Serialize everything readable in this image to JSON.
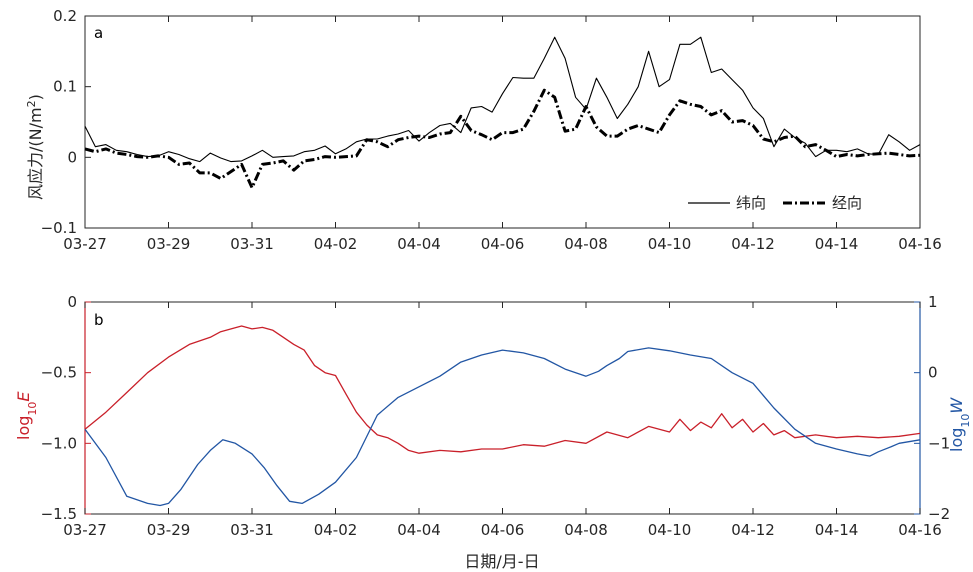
{
  "chart_data": [
    {
      "type": "line",
      "panel_label": "a",
      "ylabel": "风应力/(N/m²)",
      "ylabel_main": "风应力/(N/m",
      "ylabel_sup": "2",
      "ylabel_tail": ")",
      "x_ticks": [
        "03-27",
        "03-29",
        "03-31",
        "04-02",
        "04-04",
        "04-06",
        "04-08",
        "04-10",
        "04-12",
        "04-14",
        "04-16"
      ],
      "x_unit": "day index from 03-27",
      "xlim": [
        0,
        20
      ],
      "ylim": [
        -0.1,
        0.2
      ],
      "y_ticks": [
        "0.2",
        "0.1",
        "0",
        "−0.1"
      ],
      "y_tick_values": [
        0.2,
        0.1,
        0,
        -0.1
      ],
      "legend_position": "bottom-right",
      "series": [
        {
          "name": "纬向",
          "color": "#000000",
          "style": "solid",
          "x": [
            0,
            0.25,
            0.5,
            0.75,
            1,
            1.25,
            1.5,
            1.75,
            2,
            2.25,
            2.5,
            2.75,
            3,
            3.25,
            3.5,
            3.75,
            4,
            4.25,
            4.5,
            4.75,
            5,
            5.25,
            5.5,
            5.75,
            6,
            6.25,
            6.5,
            6.75,
            7,
            7.25,
            7.5,
            7.75,
            8,
            8.25,
            8.5,
            8.75,
            9,
            9.25,
            9.5,
            9.75,
            10,
            10.25,
            10.5,
            10.75,
            11,
            11.25,
            11.5,
            11.75,
            12,
            12.25,
            12.5,
            12.75,
            13,
            13.25,
            13.5,
            13.75,
            14,
            14.25,
            14.5,
            14.75,
            15,
            15.25,
            15.5,
            15.75,
            16,
            16.25,
            16.5,
            16.75,
            17,
            17.25,
            17.5,
            17.75,
            18,
            18.25,
            18.5,
            18.75,
            19,
            19.25,
            19.5,
            19.75,
            20
          ],
          "y": [
            0.044,
            0.015,
            0.018,
            0.01,
            0.008,
            0.004,
            0.001,
            0.002,
            0.008,
            0.004,
            -0.002,
            -0.006,
            0.006,
            -0.001,
            -0.006,
            -0.005,
            0.002,
            0.01,
            0,
            0.001,
            0.002,
            0.008,
            0.01,
            0.016,
            0.005,
            0.012,
            0.022,
            0.026,
            0.026,
            0.03,
            0.033,
            0.038,
            0.023,
            0.035,
            0.045,
            0.048,
            0.035,
            0.07,
            0.072,
            0.064,
            0.09,
            0.113,
            0.112,
            0.112,
            0.14,
            0.17,
            0.14,
            0.085,
            0.068,
            0.112,
            0.085,
            0.055,
            0.075,
            0.1,
            0.15,
            0.1,
            0.11,
            0.16,
            0.16,
            0.17,
            0.12,
            0.125,
            0.11,
            0.095,
            0.07,
            0.055,
            0.015,
            0.04,
            0.028,
            0.02,
            0.001,
            0.01,
            0.01,
            0.008,
            0.012,
            0.005,
            0.004,
            0.032,
            0.022,
            0.01,
            0.018
          ]
        },
        {
          "name": "经向",
          "color": "#000000",
          "style": "dashdot",
          "x": [
            0,
            0.25,
            0.5,
            0.75,
            1,
            1.25,
            1.5,
            1.75,
            2,
            2.25,
            2.5,
            2.75,
            3,
            3.25,
            3.5,
            3.75,
            4,
            4.25,
            4.5,
            4.75,
            5,
            5.25,
            5.5,
            5.75,
            6,
            6.25,
            6.5,
            6.75,
            7,
            7.25,
            7.5,
            7.75,
            8,
            8.25,
            8.5,
            8.75,
            9,
            9.25,
            9.5,
            9.75,
            10,
            10.25,
            10.5,
            10.75,
            11,
            11.25,
            11.5,
            11.75,
            12,
            12.25,
            12.5,
            12.75,
            13,
            13.25,
            13.5,
            13.75,
            14,
            14.25,
            14.5,
            14.75,
            15,
            15.25,
            15.5,
            15.75,
            16,
            16.25,
            16.5,
            16.75,
            17,
            17.25,
            17.5,
            17.75,
            18,
            18.25,
            18.5,
            18.75,
            19,
            19.25,
            19.5,
            19.75,
            20
          ],
          "y": [
            0.012,
            0.008,
            0.012,
            0.006,
            0.004,
            0.001,
            0,
            0.002,
            0,
            -0.01,
            -0.008,
            -0.022,
            -0.022,
            -0.03,
            -0.02,
            -0.01,
            -0.043,
            -0.01,
            -0.008,
            -0.005,
            -0.018,
            -0.005,
            -0.003,
            0.001,
            0,
            0.001,
            0.002,
            0.025,
            0.022,
            0.015,
            0.025,
            0.028,
            0.03,
            0.028,
            0.033,
            0.035,
            0.058,
            0.038,
            0.032,
            0.025,
            0.035,
            0.035,
            0.04,
            0.065,
            0.095,
            0.085,
            0.037,
            0.04,
            0.072,
            0.043,
            0.03,
            0.03,
            0.04,
            0.045,
            0.04,
            0.035,
            0.06,
            0.08,
            0.075,
            0.072,
            0.06,
            0.066,
            0.05,
            0.052,
            0.045,
            0.026,
            0.022,
            0.028,
            0.03,
            0.015,
            0.018,
            0.01,
            0.001,
            0.004,
            0.002,
            0.004,
            0.005,
            0.006,
            0.004,
            0.002,
            0.003
          ]
        }
      ]
    },
    {
      "type": "line",
      "panel_label": "b",
      "xlabel": "日期/月-日",
      "x_ticks": [
        "03-27",
        "03-29",
        "03-31",
        "04-02",
        "04-04",
        "04-06",
        "04-08",
        "04-10",
        "04-12",
        "04-14",
        "04-16"
      ],
      "xlim": [
        0,
        20
      ],
      "ylabel_left": "log10E",
      "ylabel_left_main": "log",
      "ylabel_left_sub": "10",
      "ylabel_left_var": "E",
      "ylabel_right": "log10W",
      "ylabel_right_main": "log",
      "ylabel_right_sub": "10",
      "ylabel_right_var": "W",
      "ylim_left": [
        -1.5,
        0
      ],
      "ylim_right": [
        -2,
        1
      ],
      "y_ticks_left": [
        "0",
        "−0.5",
        "−1.0",
        "−1.5"
      ],
      "y_tick_values_left": [
        0,
        -0.5,
        -1.0,
        -1.5
      ],
      "y_ticks_right": [
        "1",
        "0",
        "−1",
        "−2"
      ],
      "y_tick_values_right": [
        1,
        0,
        -1,
        -2
      ],
      "series": [
        {
          "name": "log10E",
          "axis": "left",
          "color": "#c9202a",
          "x": [
            0,
            0.5,
            1,
            1.5,
            2,
            2.5,
            3,
            3.25,
            3.5,
            3.75,
            4,
            4.25,
            4.5,
            4.75,
            5,
            5.25,
            5.5,
            5.75,
            6,
            6.25,
            6.5,
            6.75,
            7,
            7.25,
            7.5,
            7.75,
            8,
            8.5,
            9,
            9.5,
            10,
            10.5,
            11,
            11.5,
            12,
            12.5,
            13,
            13.5,
            14,
            14.25,
            14.5,
            14.75,
            15,
            15.25,
            15.5,
            15.75,
            16,
            16.25,
            16.5,
            16.75,
            17,
            17.5,
            18,
            18.5,
            19,
            19.5,
            20
          ],
          "y": [
            -0.9,
            -0.78,
            -0.64,
            -0.5,
            -0.39,
            -0.3,
            -0.25,
            -0.21,
            -0.19,
            -0.17,
            -0.19,
            -0.18,
            -0.2,
            -0.25,
            -0.3,
            -0.34,
            -0.45,
            -0.5,
            -0.52,
            -0.65,
            -0.78,
            -0.87,
            -0.94,
            -0.96,
            -1.0,
            -1.05,
            -1.07,
            -1.05,
            -1.06,
            -1.04,
            -1.04,
            -1.01,
            -1.02,
            -0.98,
            -1.0,
            -0.92,
            -0.96,
            -0.88,
            -0.92,
            -0.83,
            -0.91,
            -0.85,
            -0.89,
            -0.79,
            -0.89,
            -0.83,
            -0.92,
            -0.86,
            -0.94,
            -0.91,
            -0.96,
            -0.94,
            -0.96,
            -0.95,
            -0.96,
            -0.95,
            -0.93
          ]
        },
        {
          "name": "log10W",
          "axis": "right",
          "color": "#2256a4",
          "x": [
            0,
            0.5,
            1,
            1.5,
            1.8,
            2,
            2.3,
            2.7,
            3,
            3.3,
            3.6,
            4,
            4.3,
            4.6,
            4.9,
            5.2,
            5.6,
            6,
            6.5,
            7,
            7.5,
            8,
            8.5,
            9,
            9.5,
            10,
            10.5,
            11,
            11.5,
            12,
            12.3,
            12.5,
            12.8,
            13,
            13.5,
            14,
            14.5,
            15,
            15.5,
            16,
            16.5,
            17,
            17.5,
            18,
            18.5,
            18.8,
            19,
            19.3,
            19.5,
            20
          ],
          "y": [
            -0.8,
            -1.2,
            -1.75,
            -1.85,
            -1.88,
            -1.85,
            -1.65,
            -1.3,
            -1.1,
            -0.95,
            -1.0,
            -1.15,
            -1.35,
            -1.6,
            -1.82,
            -1.85,
            -1.72,
            -1.55,
            -1.2,
            -0.6,
            -0.35,
            -0.2,
            -0.05,
            0.15,
            0.25,
            0.32,
            0.28,
            0.2,
            0.05,
            -0.05,
            0.02,
            0.1,
            0.2,
            0.3,
            0.35,
            0.31,
            0.25,
            0.2,
            0.0,
            -0.15,
            -0.5,
            -0.8,
            -1.0,
            -1.08,
            -1.15,
            -1.18,
            -1.12,
            -1.05,
            -1.0,
            -0.95
          ]
        }
      ]
    }
  ]
}
